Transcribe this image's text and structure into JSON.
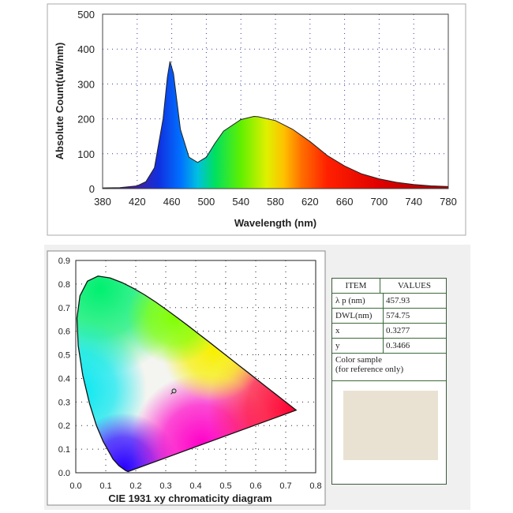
{
  "chart_data": [
    {
      "type": "area",
      "title": "",
      "xlabel": "Wavelength (nm)",
      "ylabel": "Absolute Count(uW/nm)",
      "xlim": [
        380,
        780
      ],
      "ylim": [
        0,
        500
      ],
      "xticks": [
        "380",
        "420",
        "460",
        "500",
        "540",
        "580",
        "620",
        "660",
        "700",
        "740",
        "780"
      ],
      "yticks": [
        "0",
        "100",
        "200",
        "300",
        "400",
        "500"
      ],
      "grid": true,
      "x": [
        380,
        400,
        420,
        430,
        440,
        450,
        455,
        458,
        462,
        470,
        480,
        490,
        500,
        510,
        520,
        540,
        555,
        560,
        580,
        600,
        620,
        640,
        660,
        680,
        700,
        720,
        740,
        760,
        780
      ],
      "values": [
        2,
        3,
        8,
        20,
        60,
        200,
        320,
        365,
        330,
        170,
        90,
        75,
        90,
        130,
        165,
        198,
        207,
        206,
        195,
        170,
        135,
        95,
        65,
        42,
        28,
        18,
        12,
        8,
        6
      ]
    },
    {
      "type": "scatter",
      "title": "CIE 1931 xy chromaticity diagram",
      "xlim": [
        0,
        0.8
      ],
      "ylim": [
        0,
        0.9
      ],
      "xticks": [
        "0.0",
        "0.1",
        "0.2",
        "0.3",
        "0.4",
        "0.5",
        "0.6",
        "0.7",
        "0.8"
      ],
      "yticks": [
        "0.0",
        "0.1",
        "0.2",
        "0.3",
        "0.4",
        "0.5",
        "0.6",
        "0.7",
        "0.8",
        "0.9"
      ],
      "grid": true,
      "point": {
        "x": 0.3277,
        "y": 0.3466
      }
    }
  ],
  "table": {
    "headers": [
      "ITEM",
      "VALUES"
    ],
    "rows": [
      [
        "λ p   (nm)",
        "457.93"
      ],
      [
        "DWL(nm)",
        "574.75"
      ],
      [
        "x",
        "0.3277"
      ],
      [
        "y",
        "0.3466"
      ]
    ],
    "note": "Color sample\n(for reference only)",
    "sample_color": "#e9e2d3"
  }
}
